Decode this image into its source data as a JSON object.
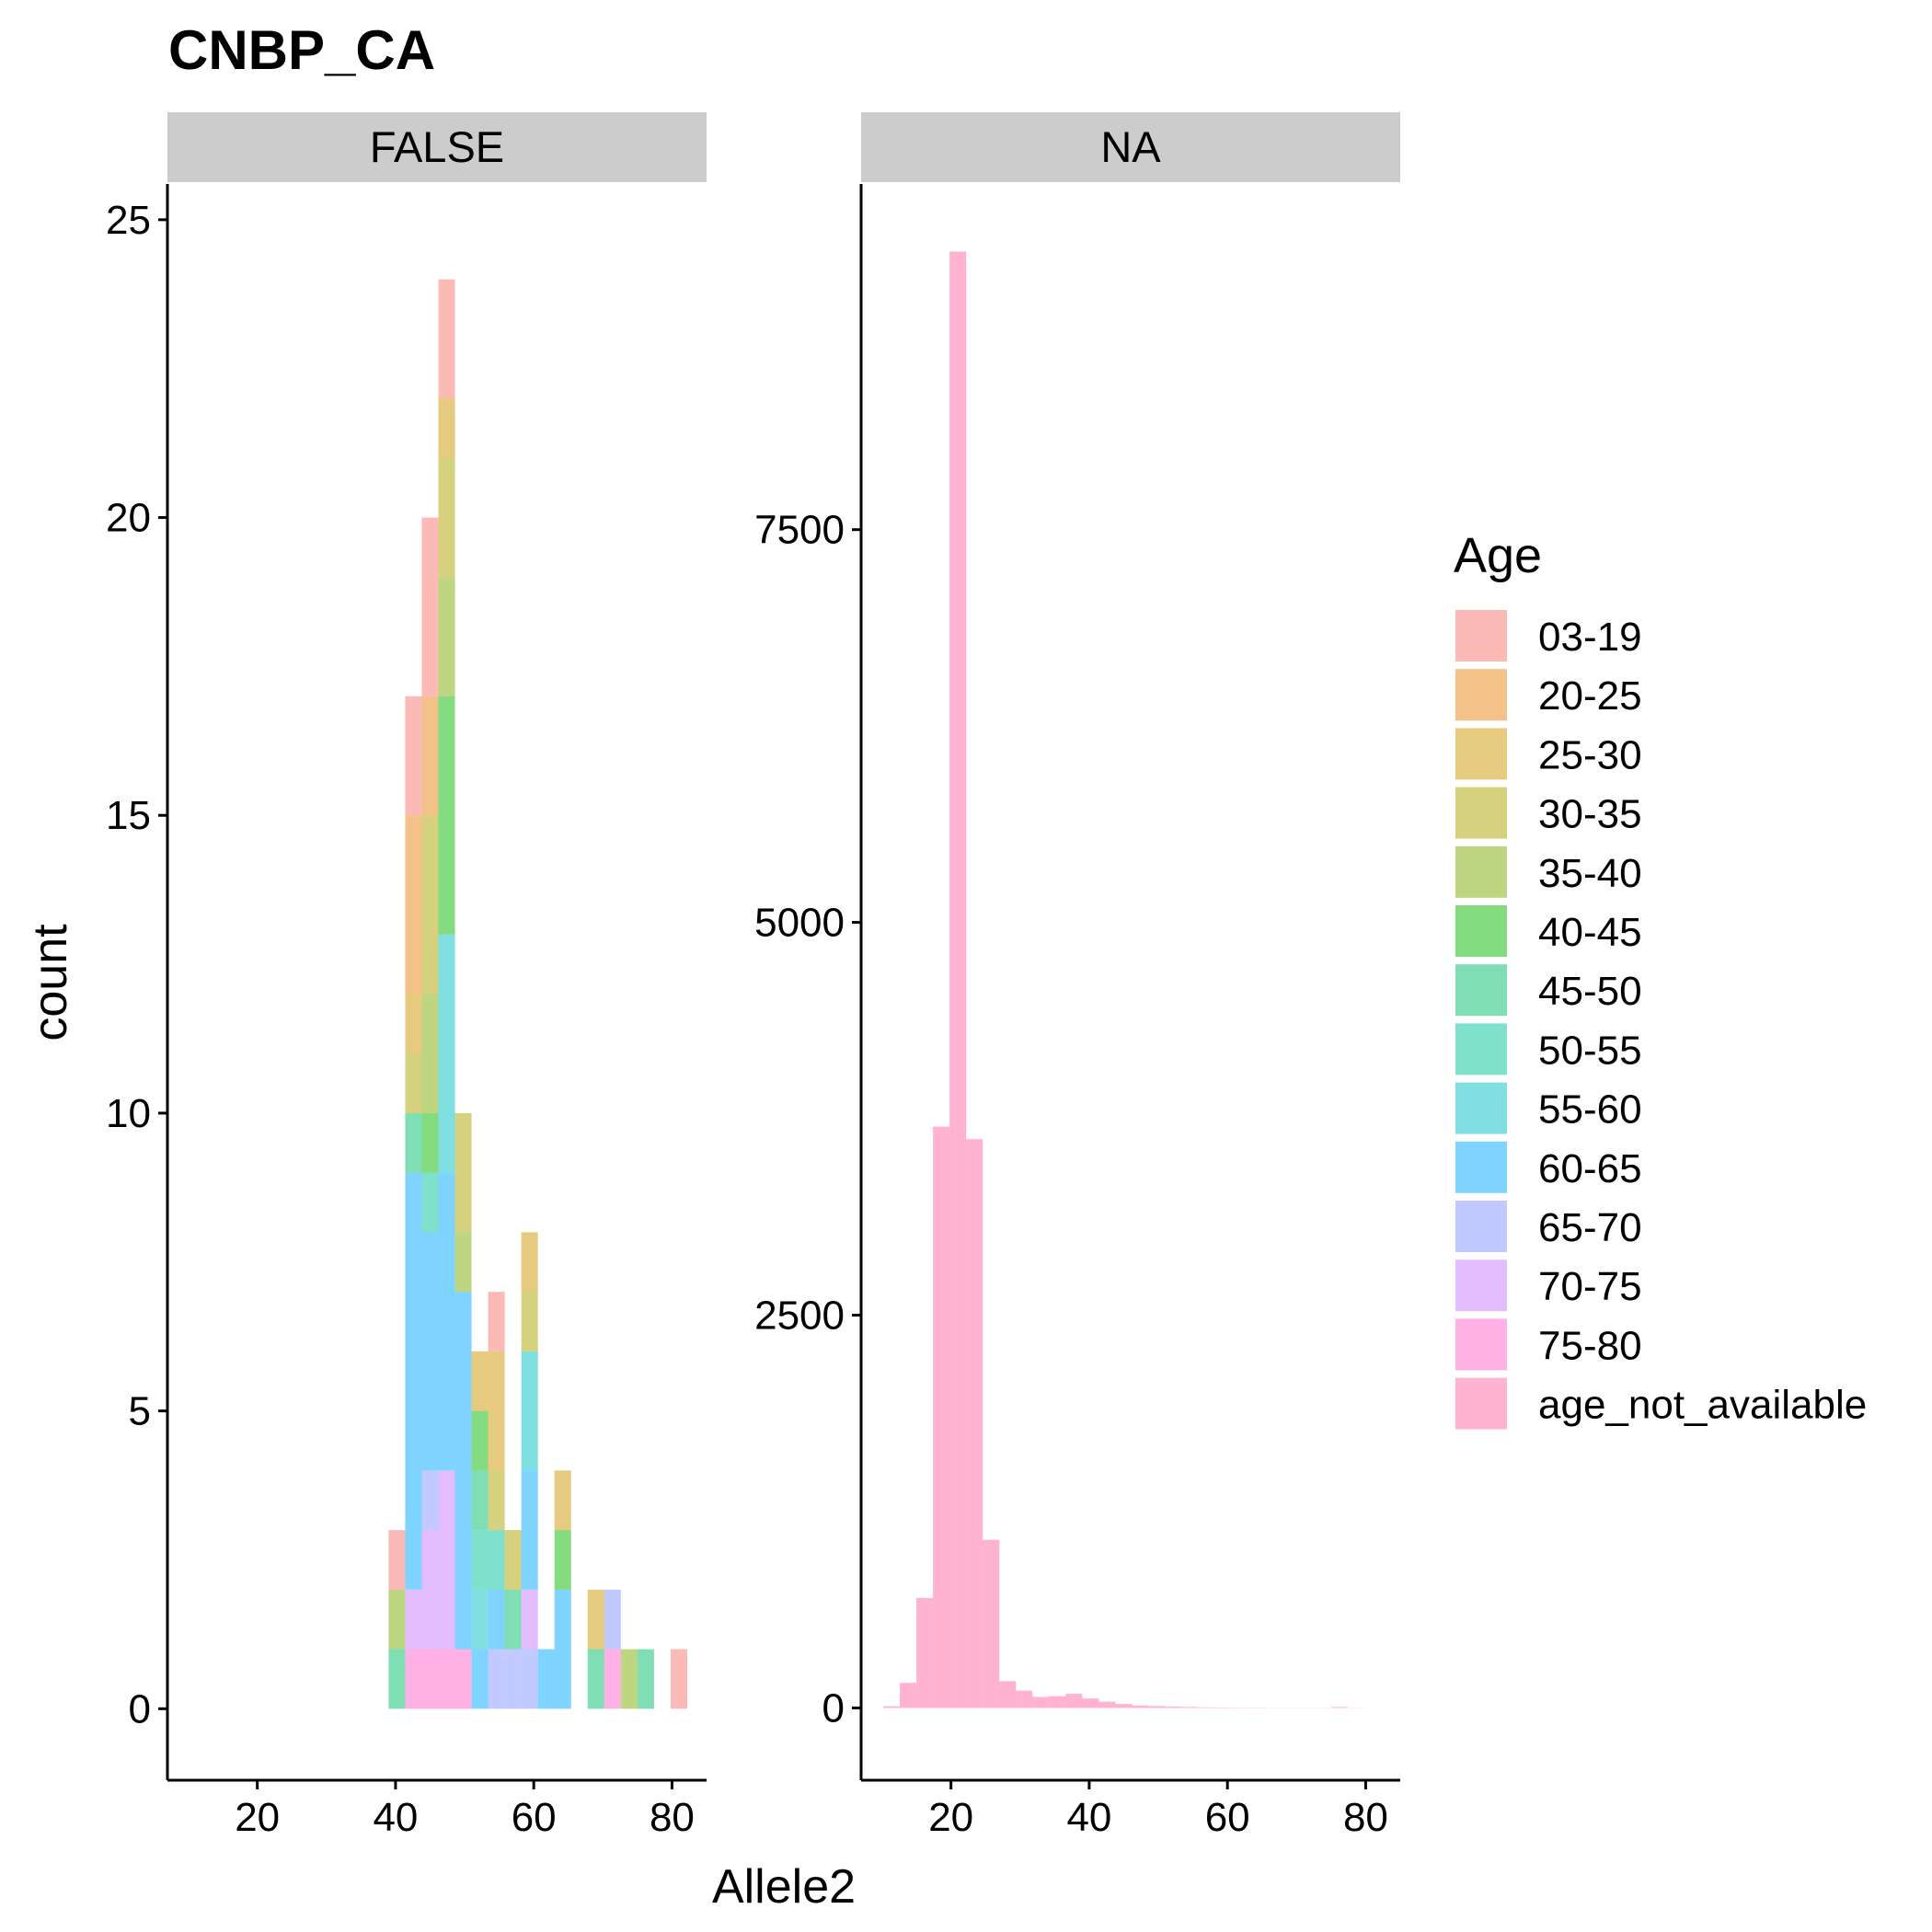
{
  "chart_data": {
    "type": "bar",
    "subtype": "stacked histogram, faceted",
    "title": "CNBP_CA",
    "xlabel": "Allele2",
    "ylabel": "count",
    "legend": {
      "title": "Age",
      "placement": "right",
      "entries": [
        {
          "label": "03-19",
          "color": "#f8766d"
        },
        {
          "label": "20-25",
          "color": "#e68613"
        },
        {
          "label": "25-30",
          "color": "#cd9600"
        },
        {
          "label": "30-35",
          "color": "#aba300"
        },
        {
          "label": "35-40",
          "color": "#7cae00"
        },
        {
          "label": "40-45",
          "color": "#0cb702"
        },
        {
          "label": "45-50",
          "color": "#00be67"
        },
        {
          "label": "50-55",
          "color": "#00c19a"
        },
        {
          "label": "55-60",
          "color": "#00bfc4"
        },
        {
          "label": "60-65",
          "color": "#00a9ff"
        },
        {
          "label": "65-70",
          "color": "#8494ff"
        },
        {
          "label": "70-75",
          "color": "#c77cff"
        },
        {
          "label": "75-80",
          "color": "#ff61cc"
        },
        {
          "label": "age_not_available",
          "color": "#ff68a1"
        }
      ]
    },
    "bar_alpha": 0.5,
    "grid": false,
    "facets": [
      {
        "label": "FALSE",
        "xlim": [
          7,
          85
        ],
        "ylim": [
          -1.2,
          25.6
        ],
        "xticks": [
          20,
          40,
          60,
          80
        ],
        "yticks": [
          0,
          5,
          10,
          15,
          20,
          25
        ],
        "bin_width": 2.4,
        "bins": [
          {
            "x": 40.2,
            "stack": [
              {
                "group": "45-50",
                "count": 1
              },
              {
                "group": "35-40",
                "count": 1
              },
              {
                "group": "03-19",
                "count": 1
              }
            ]
          },
          {
            "x": 42.6,
            "stack": [
              {
                "group": "75-80",
                "count": 1
              },
              {
                "group": "70-75",
                "count": 1
              },
              {
                "group": "60-65",
                "count": 7
              },
              {
                "group": "45-50",
                "count": 1
              },
              {
                "group": "30-35",
                "count": 1
              },
              {
                "group": "25-30",
                "count": 1
              },
              {
                "group": "20-25",
                "count": 3
              },
              {
                "group": "03-19",
                "count": 2
              }
            ]
          },
          {
            "x": 45.0,
            "stack": [
              {
                "group": "75-80",
                "count": 1
              },
              {
                "group": "70-75",
                "count": 2
              },
              {
                "group": "65-70",
                "count": 1
              },
              {
                "group": "60-65",
                "count": 4
              },
              {
                "group": "50-55",
                "count": 1
              },
              {
                "group": "40-45",
                "count": 1
              },
              {
                "group": "35-40",
                "count": 2
              },
              {
                "group": "30-35",
                "count": 3
              },
              {
                "group": "20-25",
                "count": 2
              },
              {
                "group": "03-19",
                "count": 3
              }
            ]
          },
          {
            "x": 47.4,
            "stack": [
              {
                "group": "75-80",
                "count": 1
              },
              {
                "group": "70-75",
                "count": 3
              },
              {
                "group": "60-65",
                "count": 5
              },
              {
                "group": "55-60",
                "count": 4
              },
              {
                "group": "40-45",
                "count": 4
              },
              {
                "group": "35-40",
                "count": 2
              },
              {
                "group": "30-35",
                "count": 2
              },
              {
                "group": "25-30",
                "count": 1
              },
              {
                "group": "03-19",
                "count": 2
              }
            ]
          },
          {
            "x": 49.8,
            "stack": [
              {
                "group": "75-80",
                "count": 1
              },
              {
                "group": "60-65",
                "count": 6
              },
              {
                "group": "35-40",
                "count": 1
              },
              {
                "group": "30-35",
                "count": 2
              }
            ]
          },
          {
            "x": 52.2,
            "stack": [
              {
                "group": "60-65",
                "count": 1
              },
              {
                "group": "55-60",
                "count": 1
              },
              {
                "group": "50-55",
                "count": 1
              },
              {
                "group": "45-50",
                "count": 1
              },
              {
                "group": "40-45",
                "count": 1
              },
              {
                "group": "25-30",
                "count": 1
              }
            ]
          },
          {
            "x": 54.6,
            "stack": [
              {
                "group": "65-70",
                "count": 1
              },
              {
                "group": "60-65",
                "count": 1
              },
              {
                "group": "50-55",
                "count": 1
              },
              {
                "group": "30-35",
                "count": 1
              },
              {
                "group": "25-30",
                "count": 2
              },
              {
                "group": "03-19",
                "count": 1
              }
            ]
          },
          {
            "x": 57.0,
            "stack": [
              {
                "group": "65-70",
                "count": 1
              },
              {
                "group": "45-50",
                "count": 1
              },
              {
                "group": "30-35",
                "count": 1
              }
            ]
          },
          {
            "x": 59.4,
            "stack": [
              {
                "group": "65-70",
                "count": 1
              },
              {
                "group": "70-75",
                "count": 1
              },
              {
                "group": "60-65",
                "count": 2
              },
              {
                "group": "55-60",
                "count": 2
              },
              {
                "group": "30-35",
                "count": 1
              },
              {
                "group": "25-30",
                "count": 1
              }
            ]
          },
          {
            "x": 61.8,
            "stack": [
              {
                "group": "60-65",
                "count": 1
              }
            ]
          },
          {
            "x": 64.2,
            "stack": [
              {
                "group": "60-65",
                "count": 2
              },
              {
                "group": "40-45",
                "count": 1
              },
              {
                "group": "25-30",
                "count": 1
              }
            ]
          },
          {
            "x": 69.0,
            "stack": [
              {
                "group": "45-50",
                "count": 1
              },
              {
                "group": "25-30",
                "count": 1
              }
            ]
          },
          {
            "x": 71.4,
            "stack": [
              {
                "group": "75-80",
                "count": 1
              },
              {
                "group": "65-70",
                "count": 1
              }
            ]
          },
          {
            "x": 73.8,
            "stack": [
              {
                "group": "35-40",
                "count": 1
              }
            ]
          },
          {
            "x": 76.2,
            "stack": [
              {
                "group": "45-50",
                "count": 1
              }
            ]
          },
          {
            "x": 81.0,
            "stack": [
              {
                "group": "03-19",
                "count": 1
              }
            ]
          }
        ]
      },
      {
        "label": "NA",
        "xlim": [
          7,
          85
        ],
        "ylim": [
          -460,
          9700
        ],
        "xticks": [
          20,
          40,
          60,
          80
        ],
        "yticks": [
          0,
          2500,
          5000,
          7500
        ],
        "bin_width": 2.4,
        "series_group": "age_not_available",
        "bins": [
          {
            "x": 11.4,
            "count": 10
          },
          {
            "x": 13.8,
            "count": 160
          },
          {
            "x": 16.2,
            "count": 700
          },
          {
            "x": 18.6,
            "count": 3700
          },
          {
            "x": 21.0,
            "count": 9270
          },
          {
            "x": 23.4,
            "count": 3620
          },
          {
            "x": 25.8,
            "count": 1070
          },
          {
            "x": 28.2,
            "count": 170
          },
          {
            "x": 30.6,
            "count": 110
          },
          {
            "x": 33.0,
            "count": 70
          },
          {
            "x": 35.4,
            "count": 75
          },
          {
            "x": 37.8,
            "count": 90
          },
          {
            "x": 40.2,
            "count": 60
          },
          {
            "x": 42.6,
            "count": 40
          },
          {
            "x": 45.0,
            "count": 25
          },
          {
            "x": 47.4,
            "count": 15
          },
          {
            "x": 49.8,
            "count": 12
          },
          {
            "x": 52.2,
            "count": 8
          },
          {
            "x": 54.6,
            "count": 6
          },
          {
            "x": 57.0,
            "count": 4
          },
          {
            "x": 59.4,
            "count": 3
          },
          {
            "x": 61.8,
            "count": 2
          },
          {
            "x": 64.2,
            "count": 2
          },
          {
            "x": 66.6,
            "count": 1
          },
          {
            "x": 69.0,
            "count": 1
          },
          {
            "x": 71.4,
            "count": 1
          },
          {
            "x": 73.8,
            "count": 1
          },
          {
            "x": 76.2,
            "count": 6
          },
          {
            "x": 78.6,
            "count": 1
          }
        ]
      }
    ]
  }
}
